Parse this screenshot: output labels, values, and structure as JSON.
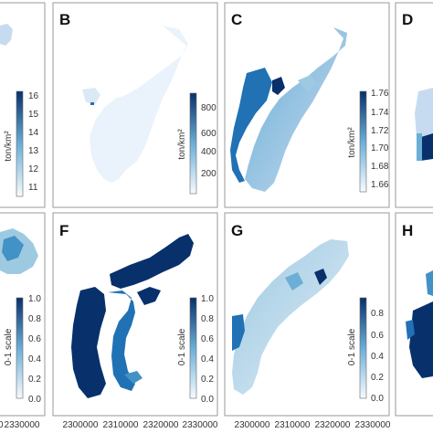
{
  "panels": {
    "A": {
      "letter": "",
      "unit": "ton/km²",
      "ticks": [
        "16",
        "15",
        "14",
        "13",
        "12",
        "11"
      ]
    },
    "B": {
      "letter": "B",
      "unit": "ton/km²",
      "ticks": [
        "800",
        "600",
        "400",
        "200"
      ]
    },
    "C": {
      "letter": "C",
      "unit": "ton/km²",
      "ticks": [
        "1.76",
        "1.74",
        "1.72",
        "1.70",
        "1.68",
        "1.66"
      ]
    },
    "D": {
      "letter": "D"
    },
    "E": {
      "letter": "",
      "unit": "0-1 scale",
      "ticks": [
        "1.0",
        "0.8",
        "0.6",
        "0.4",
        "0.2",
        "0.0"
      ]
    },
    "F": {
      "letter": "F",
      "unit": "0-1 scale",
      "ticks": [
        "1.0",
        "0.8",
        "0.6",
        "0.4",
        "0.2",
        "0.0"
      ]
    },
    "G": {
      "letter": "G",
      "unit": "0-1 scale",
      "ticks": [
        "0.8",
        "0.6",
        "0.4",
        "0.2",
        "0.0"
      ]
    },
    "H": {
      "letter": "H"
    }
  },
  "x_axis": {
    "partial_left": "0",
    "ticks_F": [
      "2300000",
      "2310000",
      "2320000",
      "2330000"
    ],
    "ticks_G": [
      "2300000",
      "2310000",
      "2320000",
      "2330000"
    ],
    "ticks_E": [
      "2330000"
    ]
  },
  "colors": {
    "very_light": "#eaf2fb",
    "light": "#c6dbef",
    "mid": "#6baed6",
    "dark": "#2171b5",
    "darkest": "#08306b"
  }
}
